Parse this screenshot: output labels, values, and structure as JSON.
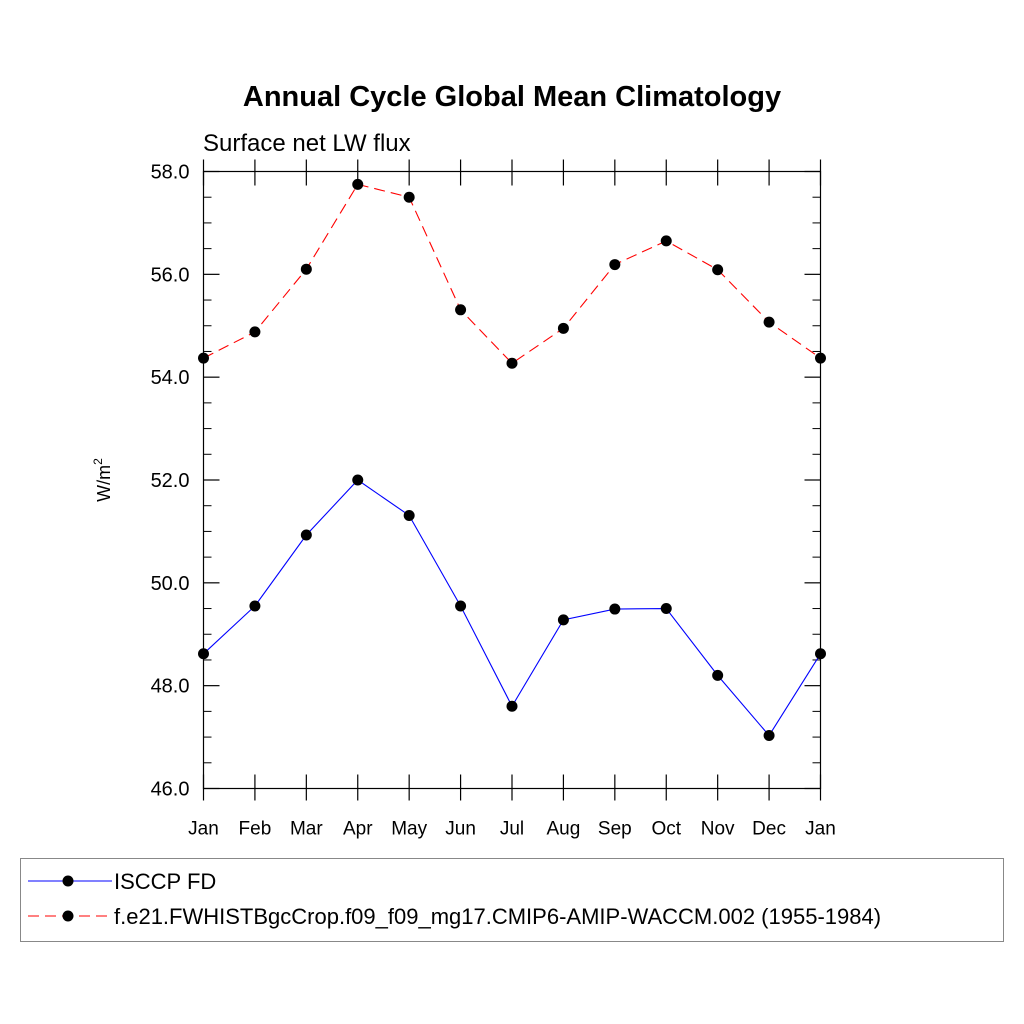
{
  "chart_data": {
    "type": "line",
    "title": "Annual Cycle Global Mean Climatology",
    "subtitle": "Surface net LW flux",
    "ylabel": "W/m",
    "ylabel_superscript": "2",
    "xlabel": "",
    "ylim": [
      46.0,
      58.0
    ],
    "yticks": [
      46.0,
      48.0,
      50.0,
      52.0,
      54.0,
      56.0,
      58.0
    ],
    "ytick_labels": [
      "46.0",
      "48.0",
      "50.0",
      "52.0",
      "54.0",
      "56.0",
      "58.0"
    ],
    "categories": [
      "Jan",
      "Feb",
      "Mar",
      "Apr",
      "May",
      "Jun",
      "Jul",
      "Aug",
      "Sep",
      "Oct",
      "Nov",
      "Dec",
      "Jan"
    ],
    "grid": false,
    "legend_position": "bottom",
    "series": [
      {
        "name": "ISCCP FD",
        "color": "#0000ff",
        "dash": "solid",
        "values": [
          48.62,
          49.55,
          50.93,
          52.0,
          51.31,
          49.55,
          47.6,
          49.28,
          49.49,
          49.5,
          48.2,
          47.03,
          48.62
        ]
      },
      {
        "name": "f.e21.FWHISTBgcCrop.f09_f09_mg17.CMIP6-AMIP-WACCM.002 (1955-1984)",
        "color": "#ff0000",
        "dash": "dashed",
        "values": [
          54.37,
          54.88,
          56.1,
          57.75,
          57.5,
          55.31,
          54.27,
          54.95,
          56.19,
          56.65,
          56.09,
          55.07,
          54.37
        ]
      }
    ]
  }
}
